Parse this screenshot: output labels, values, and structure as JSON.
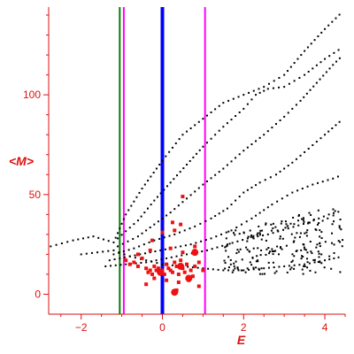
{
  "chart_data": {
    "type": "scatter",
    "title": "",
    "xlabel": "E",
    "ylabel": "<M>",
    "xlim": [
      -2.8,
      4.5
    ],
    "ylim": [
      -10,
      144
    ],
    "x_ticks": [
      -2,
      0,
      2,
      4
    ],
    "y_ticks": [
      0,
      50,
      100
    ],
    "grid": false,
    "colors": {
      "axes": "#dd1111",
      "black_series": "#000000",
      "red_series": "#ee1111",
      "blue_line": "#0000ff",
      "green_line": "#008000",
      "magenta_line": "#ff00ff"
    },
    "vertical_lines": [
      {
        "x": -1.05,
        "color": "#008000",
        "width": "thin"
      },
      {
        "x": -0.95,
        "color": "#ff00ff",
        "width": "thin"
      },
      {
        "x": 0.0,
        "color": "#0000ff",
        "width": "thick"
      },
      {
        "x": 1.05,
        "color": "#ff00ff",
        "width": "thin"
      }
    ],
    "series": [
      {
        "color": "#000000",
        "marker": "small-dot",
        "curves": [
          {
            "x": [
              -2.75,
              -2.2,
              -1.7,
              -1.2,
              -0.9,
              -0.5,
              0.0,
              0.5,
              1.0,
              1.5,
              2.0,
              2.5,
              3.0,
              3.5,
              4.0,
              4.45
            ],
            "y": [
              24,
              27,
              29,
              26,
              40,
              53,
              67,
              80,
              88,
              96,
              100,
              104,
              110,
              122,
              133,
              142
            ]
          },
          {
            "x": [
              -1.1,
              -0.6,
              -0.2,
              0.2,
              0.6,
              1.0,
              1.5,
              2.0,
              2.3,
              2.6,
              3.0,
              3.5,
              4.0,
              4.45
            ],
            "y": [
              28,
              37,
              47,
              56,
              65,
              74,
              84,
              93,
              100,
              103,
              104,
              110,
              118,
              124
            ]
          },
          {
            "x": [
              -1.1,
              -0.6,
              -0.2,
              0.2,
              0.6,
              1.0,
              1.5,
              2.0,
              2.5,
              3.0,
              3.4,
              3.8,
              4.2,
              4.45
            ],
            "y": [
              24,
              29,
              35,
              41,
              48,
              55,
              63,
              72,
              80,
              89,
              97,
              106,
              115,
              120
            ]
          },
          {
            "x": [
              -1.2,
              -0.7,
              -0.2,
              0.3,
              0.8,
              1.2,
              1.6,
              2.0,
              2.4,
              2.8,
              3.2,
              3.6,
              4.0,
              4.45
            ],
            "y": [
              20,
              23,
              27,
              30,
              34,
              38,
              43,
              51,
              56,
              60,
              66,
              73,
              80,
              88
            ]
          },
          {
            "x": [
              -1.3,
              -0.8,
              -0.3,
              0.2,
              0.7,
              1.2,
              1.7,
              2.2,
              2.7,
              3.2,
              3.7,
              4.2,
              4.45
            ],
            "y": [
              17,
              19,
              21,
              23,
              25,
              28,
              32,
              38,
              45,
              51,
              55,
              58,
              60
            ]
          },
          {
            "x": [
              -1.4,
              -0.9,
              -0.4,
              0.1,
              0.6,
              1.1,
              1.6,
              2.1,
              2.6,
              3.1,
              3.6,
              4.1,
              4.45
            ],
            "y": [
              14,
              15,
              16,
              18,
              20,
              22,
              25,
              28,
              30,
              33,
              36,
              40,
              42
            ]
          },
          {
            "x": [
              -2.0,
              -1.6,
              -1.2,
              -0.8,
              -0.4,
              0.0,
              0.5,
              1.0,
              1.5,
              2.0,
              2.5,
              3.0,
              3.5,
              4.0,
              4.45
            ],
            "y": [
              20,
              21,
              22,
              19,
              17,
              15,
              14,
              13,
              12,
              12,
              13,
              14,
              15,
              17,
              19
            ]
          }
        ],
        "cloud_region": {
          "x": [
            1.5,
            4.45
          ],
          "y": [
            10,
            45
          ],
          "approx_points": 220
        }
      },
      {
        "color": "#ee1111",
        "marker": "square",
        "points": [
          {
            "x": -0.9,
            "y": 17
          },
          {
            "x": -0.8,
            "y": 15
          },
          {
            "x": -0.7,
            "y": 16
          },
          {
            "x": -0.6,
            "y": 14
          },
          {
            "x": -0.5,
            "y": 18
          },
          {
            "x": -0.4,
            "y": 13
          },
          {
            "x": -0.35,
            "y": 11
          },
          {
            "x": -0.3,
            "y": 12
          },
          {
            "x": -0.25,
            "y": 10
          },
          {
            "x": -0.2,
            "y": 14
          },
          {
            "x": -0.15,
            "y": 12
          },
          {
            "x": -0.1,
            "y": 13
          },
          {
            "x": -0.05,
            "y": 11
          },
          {
            "x": 0.0,
            "y": 12
          },
          {
            "x": 0.05,
            "y": 10
          },
          {
            "x": 0.1,
            "y": 15
          },
          {
            "x": 0.15,
            "y": 13
          },
          {
            "x": 0.2,
            "y": 12
          },
          {
            "x": 0.25,
            "y": 11
          },
          {
            "x": 0.3,
            "y": 16
          },
          {
            "x": 0.35,
            "y": 14
          },
          {
            "x": 0.4,
            "y": 10
          },
          {
            "x": 0.45,
            "y": 17
          },
          {
            "x": 0.5,
            "y": 13
          },
          {
            "x": 0.55,
            "y": 11
          },
          {
            "x": 0.6,
            "y": 15
          },
          {
            "x": 0.7,
            "y": 12
          },
          {
            "x": 0.75,
            "y": 9
          },
          {
            "x": 0.8,
            "y": 14
          },
          {
            "x": 0.9,
            "y": 16
          },
          {
            "x": 1.0,
            "y": 12
          },
          {
            "x": -0.6,
            "y": 20
          },
          {
            "x": -0.3,
            "y": 22
          },
          {
            "x": 0.2,
            "y": 23
          },
          {
            "x": 0.5,
            "y": 21
          },
          {
            "x": 0.8,
            "y": 24
          },
          {
            "x": -0.2,
            "y": 8
          },
          {
            "x": 0.1,
            "y": 7
          },
          {
            "x": 0.4,
            "y": 6
          },
          {
            "x": -0.4,
            "y": 5
          },
          {
            "x": 0.65,
            "y": 7
          },
          {
            "x": 0.3,
            "y": 32
          },
          {
            "x": 0.45,
            "y": 35
          },
          {
            "x": 0.5,
            "y": 49
          },
          {
            "x": -0.25,
            "y": 27
          },
          {
            "x": 0.9,
            "y": 4
          },
          {
            "x": 0.0,
            "y": 31
          },
          {
            "x": 0.25,
            "y": 36
          },
          {
            "x": 0.35,
            "y": 2
          }
        ],
        "large_points": [
          {
            "x": 0.8,
            "y": 21
          },
          {
            "x": 0.3,
            "y": 1
          },
          {
            "x": 0.65,
            "y": 8
          },
          {
            "x": -0.05,
            "y": 11
          },
          {
            "x": 0.45,
            "y": 14
          }
        ]
      }
    ]
  }
}
